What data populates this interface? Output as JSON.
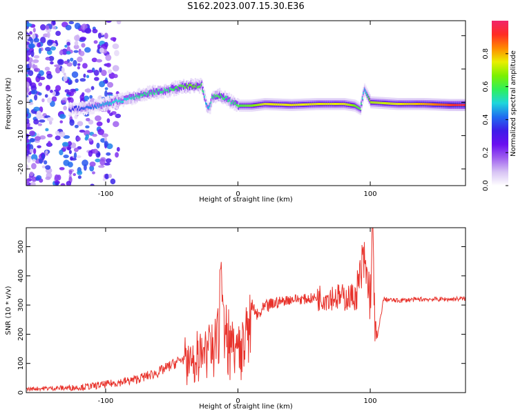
{
  "title": "S162.2023.007.15.30.E36",
  "colors": {
    "snr_line": "#e8322b",
    "axis": "#000000",
    "spectrum_colormap": [
      "#ffffff",
      "#d7c3f4",
      "#a060ef",
      "#6a0ff0",
      "#3d1ce8",
      "#1f6cf0",
      "#1ed6dc",
      "#2ef05a",
      "#7cf000",
      "#e9ef00",
      "#ff8a00",
      "#ff2c24",
      "#f0246a"
    ]
  },
  "chart_data": [
    {
      "type": "heatmap",
      "title": "",
      "xlabel": "Height of straight line (km)",
      "ylabel": "Frequency (Hz)",
      "xlim": [
        -160,
        172
      ],
      "ylim": [
        -25,
        24.5
      ],
      "x_ticks": [
        -100,
        0,
        100
      ],
      "x_tick_labels": [
        "-100",
        "0",
        "100"
      ],
      "y_ticks": [
        -20,
        -10,
        0,
        10,
        20
      ],
      "y_tick_labels": [
        "-20",
        "-10",
        "0",
        "10",
        "20"
      ],
      "colorbar": {
        "label": "Normalized spectral amplitude",
        "range": [
          0,
          1
        ],
        "ticks": [
          0.0,
          0.2,
          0.4,
          0.6,
          0.8
        ],
        "tick_labels": [
          "0.0",
          "0.2",
          "0.4",
          "0.6",
          "0.8"
        ]
      },
      "ridge": {
        "x": [
          -125,
          -115,
          -105,
          -95,
          -85,
          -75,
          -65,
          -55,
          -45,
          -35,
          -28,
          -24,
          -22,
          -20,
          -15,
          -10,
          -5,
          0,
          10,
          20,
          40,
          60,
          80,
          88,
          92,
          95,
          100,
          120,
          140,
          160,
          170
        ],
        "frequency": [
          -2,
          -1.5,
          -1,
          0,
          1,
          2,
          3,
          3.5,
          4.5,
          5,
          5,
          -1,
          -2,
          1.5,
          2,
          1.5,
          0,
          -1,
          -1,
          -0.5,
          -0.8,
          -0.5,
          -0.5,
          -1,
          -2,
          4,
          0,
          -0.5,
          -0.5,
          -0.8,
          -0.8
        ],
        "amplitude": [
          0.3,
          0.35,
          0.4,
          0.45,
          0.45,
          0.5,
          0.5,
          0.5,
          0.55,
          0.6,
          0.55,
          0.4,
          0.45,
          0.5,
          0.55,
          0.5,
          0.5,
          0.55,
          0.6,
          0.7,
          0.7,
          0.7,
          0.7,
          0.6,
          0.55,
          0.4,
          0.65,
          0.7,
          0.75,
          0.85,
          0.9
        ]
      }
    },
    {
      "type": "line",
      "title": "",
      "xlabel": "Height of straight line (km)",
      "ylabel": "SNR (10 * v/v)",
      "xlim": [
        -160,
        172
      ],
      "ylim": [
        0,
        565
      ],
      "x_ticks": [
        -100,
        0,
        100
      ],
      "x_tick_labels": [
        "-100",
        "0",
        "100"
      ],
      "y_ticks": [
        0,
        100,
        200,
        300,
        400,
        500
      ],
      "y_tick_labels": [
        "0",
        "100",
        "200",
        "300",
        "400",
        "500"
      ],
      "series": [
        {
          "x": [
            -160,
            -150,
            -140,
            -130,
            -120,
            -110,
            -100,
            -90,
            -80,
            -70,
            -60,
            -50,
            -40,
            -35,
            -30,
            -25,
            -20,
            -15,
            -13,
            -10,
            -5,
            0,
            5,
            10,
            15,
            20,
            30,
            40,
            50,
            60,
            70,
            80,
            90,
            95,
            100,
            102,
            104,
            110,
            120,
            130,
            140,
            150,
            160,
            172
          ],
          "values": [
            12,
            14,
            15,
            16,
            18,
            22,
            28,
            35,
            42,
            55,
            70,
            95,
            120,
            140,
            150,
            170,
            180,
            250,
            470,
            230,
            200,
            180,
            230,
            300,
            260,
            290,
            310,
            320,
            320,
            325,
            330,
            325,
            330,
            450,
            330,
            560,
            150,
            320,
            315,
            318,
            320,
            320,
            320,
            322
          ]
        }
      ]
    }
  ]
}
